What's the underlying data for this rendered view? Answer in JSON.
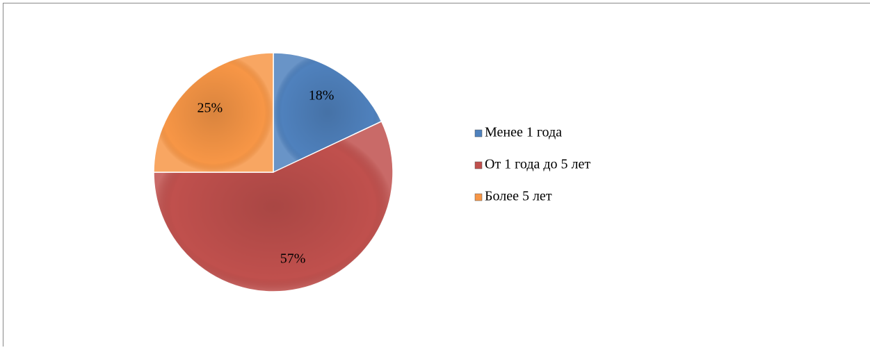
{
  "chart_data": {
    "type": "pie",
    "categories": [
      "Менее 1 года",
      "От 1 года до 5 лет",
      "Более 5 лет"
    ],
    "values": [
      18,
      57,
      25
    ],
    "value_labels": [
      "18%",
      "57%",
      "25%"
    ],
    "colors": [
      "#4f81bd",
      "#c0504d",
      "#f79646"
    ],
    "legend": "right"
  }
}
